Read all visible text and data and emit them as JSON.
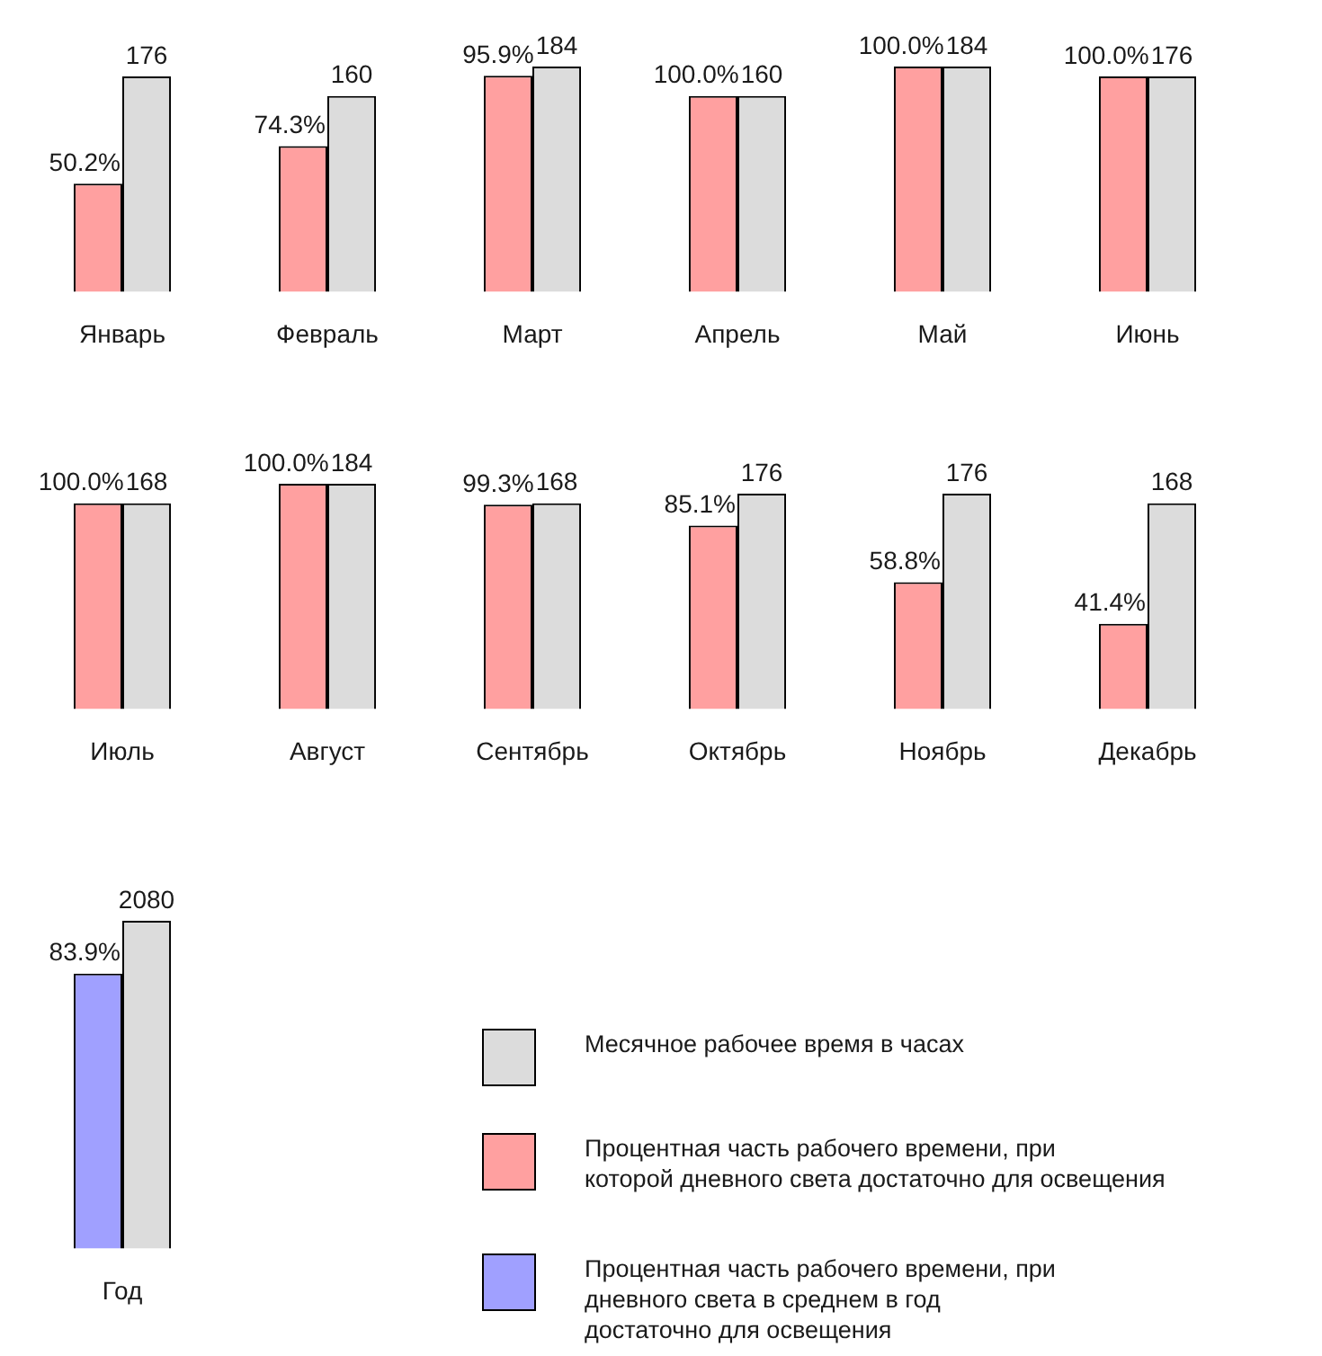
{
  "chart_data": [
    {
      "type": "bar",
      "categories": [
        "Январь"
      ],
      "tick_labels": "x",
      "series": [
        {
          "color": "#ffa0a0",
          "axis": "y2",
          "values": [
            50.2
          ],
          "value_labels": [
            "50.2%"
          ]
        },
        {
          "color": "#dcdcdc",
          "values": [
            176
          ],
          "value_labels": [
            "176"
          ]
        }
      ]
    },
    {
      "type": "bar",
      "categories": [
        "Февраль"
      ],
      "tick_labels": "x",
      "series": [
        {
          "color": "#ffa0a0",
          "axis": "y2",
          "values": [
            74.3
          ],
          "value_labels": [
            "74.3%"
          ]
        },
        {
          "color": "#dcdcdc",
          "values": [
            160
          ],
          "value_labels": [
            "160"
          ]
        }
      ]
    },
    {
      "type": "bar",
      "categories": [
        "Март"
      ],
      "tick_labels": "x",
      "series": [
        {
          "color": "#ffa0a0",
          "axis": "y2",
          "values": [
            95.9
          ],
          "value_labels": [
            "95.9%"
          ]
        },
        {
          "color": "#dcdcdc",
          "values": [
            184
          ],
          "value_labels": [
            "184"
          ]
        }
      ]
    },
    {
      "type": "bar",
      "categories": [
        "Апрель"
      ],
      "tick_labels": "x",
      "series": [
        {
          "color": "#ffa0a0",
          "axis": "y2",
          "values": [
            100.0
          ],
          "value_labels": [
            "100.0%"
          ]
        },
        {
          "color": "#dcdcdc",
          "values": [
            160
          ],
          "value_labels": [
            "160"
          ]
        }
      ]
    },
    {
      "type": "bar",
      "categories": [
        "Май"
      ],
      "tick_labels": "x",
      "series": [
        {
          "color": "#ffa0a0",
          "axis": "y2",
          "values": [
            100.0
          ],
          "value_labels": [
            "100.0%"
          ]
        },
        {
          "color": "#dcdcdc",
          "values": [
            184
          ],
          "value_labels": [
            "184"
          ]
        }
      ]
    },
    {
      "type": "bar",
      "categories": [
        "Июнь"
      ],
      "tick_labels": "x",
      "series": [
        {
          "color": "#ffa0a0",
          "axis": "y2",
          "values": [
            100.0
          ],
          "value_labels": [
            "100.0%"
          ]
        },
        {
          "color": "#dcdcdc",
          "values": [
            176
          ],
          "value_labels": [
            "176"
          ]
        }
      ]
    },
    {
      "type": "bar",
      "categories": [
        "Июль"
      ],
      "tick_labels": "x",
      "series": [
        {
          "color": "#ffa0a0",
          "axis": "y2",
          "values": [
            100.0
          ],
          "value_labels": [
            "100.0%"
          ]
        },
        {
          "color": "#dcdcdc",
          "values": [
            168
          ],
          "value_labels": [
            "168"
          ]
        }
      ]
    },
    {
      "type": "bar",
      "categories": [
        "Август"
      ],
      "tick_labels": "x",
      "series": [
        {
          "color": "#ffa0a0",
          "axis": "y2",
          "values": [
            100.0
          ],
          "value_labels": [
            "100.0%"
          ]
        },
        {
          "color": "#dcdcdc",
          "values": [
            184
          ],
          "value_labels": [
            "184"
          ]
        }
      ]
    },
    {
      "type": "bar",
      "categories": [
        "Сентябрь"
      ],
      "tick_labels": "x",
      "series": [
        {
          "color": "#ffa0a0",
          "axis": "y2",
          "values": [
            99.3
          ],
          "value_labels": [
            "99.3%"
          ]
        },
        {
          "color": "#dcdcdc",
          "values": [
            168
          ],
          "value_labels": [
            "168"
          ]
        }
      ]
    },
    {
      "type": "bar",
      "categories": [
        "Октябрь"
      ],
      "tick_labels": "x",
      "series": [
        {
          "color": "#ffa0a0",
          "axis": "y2",
          "values": [
            85.1
          ],
          "value_labels": [
            "85.1%"
          ]
        },
        {
          "color": "#dcdcdc",
          "values": [
            176
          ],
          "value_labels": [
            "176"
          ]
        }
      ]
    },
    {
      "type": "bar",
      "categories": [
        "Ноябрь"
      ],
      "tick_labels": "x",
      "series": [
        {
          "color": "#ffa0a0",
          "axis": "y2",
          "values": [
            58.8
          ],
          "value_labels": [
            "58.8%"
          ]
        },
        {
          "color": "#dcdcdc",
          "values": [
            176
          ],
          "value_labels": [
            "176"
          ]
        }
      ]
    },
    {
      "type": "bar",
      "categories": [
        "Декабрь"
      ],
      "tick_labels": "x",
      "series": [
        {
          "color": "#ffa0a0",
          "axis": "y2",
          "values": [
            41.4
          ],
          "value_labels": [
            "41.4%"
          ]
        },
        {
          "color": "#dcdcdc",
          "values": [
            168
          ],
          "value_labels": [
            "168"
          ]
        }
      ]
    },
    {
      "type": "bar",
      "categories": [
        "Год"
      ],
      "tick_labels": "x",
      "legend": "right",
      "series": [
        {
          "name": "Процентная часть рабочего времени, при\nдневного света в среднем в год\nдостаточно для освещения",
          "color": "#a0a0ff",
          "axis": "y2",
          "values": [
            83.9
          ],
          "value_labels": [
            "83.9%"
          ]
        },
        {
          "name": "Процентная часть рабочего времени, при\nкоторой дневного света достаточно для освещения",
          "color": "#ffa0a0",
          "axis": "y2",
          "values": [
            null
          ]
        },
        {
          "name": "Месячное рабочее время в часах",
          "color": "#dcdcdc",
          "values": [
            2080
          ],
          "value_labels": [
            "2080"
          ]
        }
      ]
    }
  ]
}
